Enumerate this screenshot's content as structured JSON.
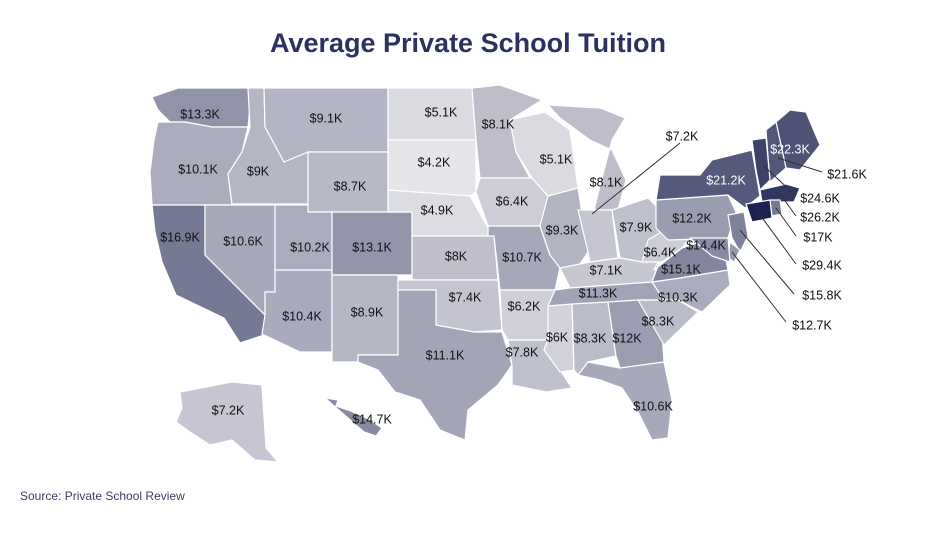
{
  "title": "Average Private School Tuition",
  "source": "Source: Private School Review",
  "colors": {
    "title": "#2b3160",
    "scale_low": "#e6e6ea",
    "scale_high": "#1c2250",
    "border": "#ffffff"
  },
  "map_data": {
    "type": "choropleth",
    "region": "United States",
    "metric": "Average Private School Tuition",
    "values": {
      "WA": "$13.3K",
      "OR": "$10.1K",
      "CA": "$16.9K",
      "ID": "$9K",
      "NV": "$10.6K",
      "MT": "$9.1K",
      "WY": "$8.7K",
      "UT": "$10.2K",
      "AZ": "$10.4K",
      "CO": "$13.1K",
      "NM": "$8.9K",
      "ND": "$5.1K",
      "SD": "$4.2K",
      "NE": "$4.9K",
      "KS": "$8K",
      "OK": "$7.4K",
      "TX": "$11.1K",
      "MN": "$8.1K",
      "IA": "$6.4K",
      "MO": "$10.7K",
      "AR": "$6.2K",
      "LA": "$7.8K",
      "WI": "$5.1K",
      "IL": "$9.3K",
      "MI": "$8.1K",
      "IN": "$7.2K",
      "OH": "$7.9K",
      "KY": "$7.1K",
      "TN": "$11.3K",
      "MS": "$6K",
      "AL": "$8.3K",
      "GA": "$12K",
      "FL": "$10.6K",
      "SC": "$8.3K",
      "NC": "$10.3K",
      "VA": "$15.1K",
      "WV": "$6.4K",
      "PA": "$12.2K",
      "NY": "$21.2K",
      "ME": "$22.3K",
      "NH": "$21.6K",
      "VT": "$24.6K",
      "MA": "$26.2K",
      "RI": "$17K",
      "CT": "$29.4K",
      "NJ": "$15.8K",
      "DE": "$12.7K",
      "MD": "$14.4K",
      "AK": "$7.2K",
      "HI": "$14.7K"
    }
  }
}
